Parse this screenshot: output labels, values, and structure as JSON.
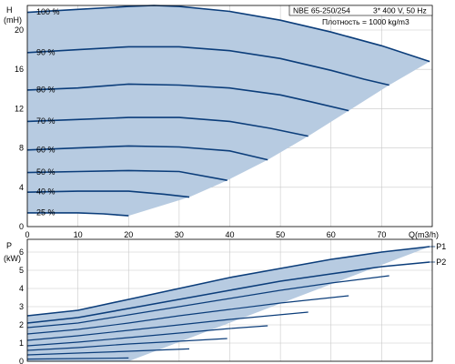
{
  "colors": {
    "curve": "#0b3d7a",
    "fill": "#b7cbe1",
    "grid": "#c8c8c8",
    "axis": "#000000"
  },
  "chart_data": [
    {
      "type": "line",
      "title": "NBE 65-250/254",
      "subtitle": "3* 400 V, 50 Hz",
      "annotation": "Плотность = 1000 kg/m3",
      "xlabel": "Q(m3/h)",
      "ylabel": "H",
      "yunit": "(mH)",
      "xlim": [
        0,
        80
      ],
      "ylim": [
        0,
        22.5
      ],
      "xticks": [
        0,
        10,
        20,
        30,
        40,
        50,
        60,
        70
      ],
      "yticks": [
        0,
        4,
        8,
        12,
        16,
        20
      ],
      "grid": true,
      "fill_region": true,
      "series": [
        {
          "name": "100 %",
          "x": [
            0,
            10,
            20,
            25,
            30,
            40,
            50,
            60,
            70,
            79.5
          ],
          "y": [
            21.8,
            22.1,
            22.4,
            22.5,
            22.4,
            21.9,
            21.0,
            19.8,
            18.4,
            16.8
          ]
        },
        {
          "name": "90 %",
          "x": [
            0,
            10,
            20,
            30,
            40,
            50,
            60,
            66.5,
            71.5
          ],
          "y": [
            17.7,
            18.0,
            18.3,
            18.3,
            17.9,
            17.1,
            15.9,
            15.0,
            14.4
          ]
        },
        {
          "name": "80 %",
          "x": [
            0,
            10,
            20,
            30,
            40,
            50,
            56,
            63.5
          ],
          "y": [
            13.9,
            14.1,
            14.5,
            14.4,
            14.1,
            13.4,
            12.7,
            11.8
          ]
        },
        {
          "name": "70 %",
          "x": [
            0,
            10,
            20,
            30,
            40,
            48,
            55.5
          ],
          "y": [
            10.7,
            10.9,
            11.1,
            11.1,
            10.7,
            10.0,
            9.2
          ]
        },
        {
          "name": "60 %",
          "x": [
            0,
            10,
            20,
            30,
            40,
            47.5
          ],
          "y": [
            7.8,
            8.0,
            8.2,
            8.1,
            7.7,
            6.8
          ]
        },
        {
          "name": "50 %",
          "x": [
            0,
            10,
            20,
            30,
            39.5
          ],
          "y": [
            5.5,
            5.6,
            5.7,
            5.6,
            4.7
          ]
        },
        {
          "name": "40 %",
          "x": [
            0,
            10,
            20,
            27,
            32
          ],
          "y": [
            3.5,
            3.6,
            3.6,
            3.3,
            3.0
          ]
        },
        {
          "name": "25 %",
          "x": [
            0,
            10,
            15,
            20
          ],
          "y": [
            1.4,
            1.4,
            1.3,
            1.1
          ]
        }
      ],
      "boundary": {
        "x": [
          20,
          32,
          39.5,
          47.5,
          55.5,
          63.5,
          71.5,
          79.5
        ],
        "y": [
          1.1,
          3.0,
          4.7,
          6.8,
          9.2,
          11.8,
          14.4,
          16.8
        ]
      }
    },
    {
      "type": "line",
      "xlabel": "",
      "ylabel": "P",
      "yunit": "(kW)",
      "xlim": [
        0,
        80
      ],
      "ylim": [
        0,
        6.7
      ],
      "yticks": [
        0,
        1,
        2,
        3,
        4,
        5,
        6
      ],
      "grid": true,
      "fill_region": true,
      "series": [
        {
          "name": "P1",
          "x": [
            0,
            10,
            20,
            30,
            40,
            50,
            60,
            70,
            79.5
          ],
          "y": [
            2.5,
            2.8,
            3.4,
            4.0,
            4.6,
            5.1,
            5.6,
            6.0,
            6.3
          ]
        },
        {
          "name": "P2",
          "x": [
            0,
            10,
            20,
            30,
            40,
            50,
            60,
            70,
            79.5
          ],
          "y": [
            2.1,
            2.4,
            2.9,
            3.4,
            3.9,
            4.4,
            4.8,
            5.2,
            5.45
          ]
        }
      ],
      "speed_curves": [
        {
          "x": [
            0,
            10,
            20,
            30,
            40,
            50,
            60,
            71.5
          ],
          "y": [
            1.85,
            2.1,
            2.55,
            3.0,
            3.45,
            3.9,
            4.3,
            4.7
          ]
        },
        {
          "x": [
            0,
            10,
            20,
            30,
            40,
            50,
            63.5
          ],
          "y": [
            1.5,
            1.75,
            2.1,
            2.5,
            2.85,
            3.2,
            3.6
          ]
        },
        {
          "x": [
            0,
            10,
            20,
            30,
            40,
            55.5
          ],
          "y": [
            1.15,
            1.4,
            1.7,
            2.0,
            2.3,
            2.7
          ]
        },
        {
          "x": [
            0,
            10,
            20,
            30,
            40,
            47.5
          ],
          "y": [
            0.85,
            1.05,
            1.3,
            1.55,
            1.8,
            1.95
          ]
        },
        {
          "x": [
            0,
            10,
            20,
            30,
            39.5
          ],
          "y": [
            0.6,
            0.75,
            0.95,
            1.1,
            1.25
          ]
        },
        {
          "x": [
            0,
            10,
            20,
            32
          ],
          "y": [
            0.35,
            0.45,
            0.55,
            0.68
          ]
        },
        {
          "x": [
            0,
            10,
            20
          ],
          "y": [
            0.12,
            0.15,
            0.18
          ]
        }
      ]
    }
  ]
}
